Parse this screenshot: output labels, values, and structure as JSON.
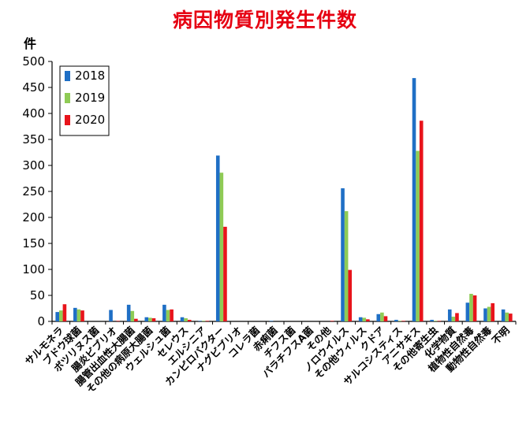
{
  "chart_data": {
    "type": "bar",
    "title": "病因物質別発生件数",
    "ylabel": "件",
    "xlabel": "",
    "ylim": [
      0,
      500
    ],
    "yticks": [
      0,
      50,
      100,
      150,
      200,
      250,
      300,
      350,
      400,
      450,
      500
    ],
    "legend_position": "top-left",
    "grid": false,
    "categories": [
      "サルモネラ",
      "ブドウ球菌",
      "ボツリヌス菌",
      "腸炎ビブリオ",
      "腸管出血性大腸菌",
      "その他の病原大腸菌",
      "ウェルシュ菌",
      "セレウス",
      "エルシニア",
      "カンピロバクター",
      "ナグビブリオ",
      "コレラ菌",
      "赤痢菌",
      "チフス菌",
      "パラチフスA菌",
      "その他",
      "ノロウイルス",
      "その他ウィルス",
      "クドア",
      "サルコシスティス",
      "アニサキス",
      "その他寄生虫",
      "化学物質",
      "植物性自然毒",
      "動物性自然毒",
      "不明"
    ],
    "series": [
      {
        "name": "2018",
        "color": "#1f6fc5",
        "values": [
          18,
          26,
          0,
          22,
          32,
          8,
          32,
          8,
          1,
          319,
          0,
          0,
          1,
          0,
          0,
          0,
          256,
          8,
          14,
          3,
          468,
          3,
          23,
          36,
          25,
          23
        ]
      },
      {
        "name": "2019",
        "color": "#8fcb55",
        "values": [
          21,
          23,
          0,
          0,
          20,
          7,
          22,
          6,
          1,
          286,
          0,
          0,
          0,
          0,
          0,
          0,
          212,
          7,
          17,
          1,
          328,
          1,
          9,
          53,
          28,
          17
        ]
      },
      {
        "name": "2020",
        "color": "#e8141b",
        "values": [
          33,
          21,
          0,
          1,
          5,
          6,
          23,
          3,
          1,
          182,
          0,
          0,
          0,
          0,
          0,
          1,
          99,
          4,
          10,
          1,
          386,
          1,
          16,
          50,
          35,
          15
        ]
      }
    ]
  }
}
